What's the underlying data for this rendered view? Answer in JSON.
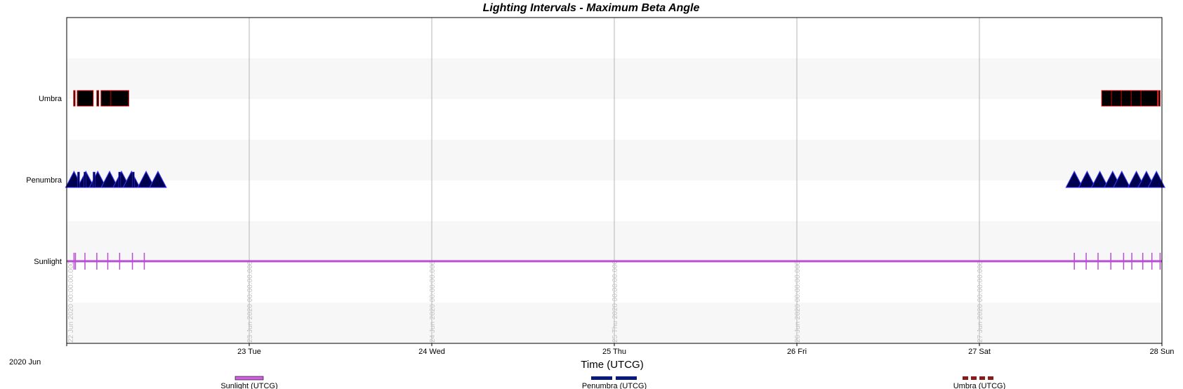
{
  "chart_data": {
    "type": "timeline",
    "title": "Lighting Intervals - Maximum Beta Angle",
    "xlabel": "Time (UTCG)",
    "x_reference_label": "2020 Jun",
    "x_range_days": [
      0,
      6
    ],
    "ticks": [
      {
        "day": 0,
        "label": ""
      },
      {
        "day": 1,
        "label": "23 Tue"
      },
      {
        "day": 2,
        "label": "24 Wed"
      },
      {
        "day": 3,
        "label": "25 Thu"
      },
      {
        "day": 4,
        "label": "26 Fri"
      },
      {
        "day": 5,
        "label": "27 Sat"
      },
      {
        "day": 6,
        "label": "28 Sun"
      }
    ],
    "gridline_labels": [
      {
        "day": 0.02,
        "label": "22 Jun 2020 00:00:00.000"
      },
      {
        "day": 1,
        "label": "23 Jun 2020 00:00:00.000"
      },
      {
        "day": 2,
        "label": "24 Jun 2020 00:00:00.000"
      },
      {
        "day": 3,
        "label": "25 Thu 2020 00:00:00.000"
      },
      {
        "day": 4,
        "label": "26 Jun 2020 00:00:00.000"
      },
      {
        "day": 5,
        "label": "27 Jun 2020 00:00:00.000"
      }
    ],
    "rows": [
      {
        "key": "umbra",
        "label": "Umbra",
        "color": "#000000",
        "edge": "#cc0000",
        "intervals": [
          [
            0.038,
            0.046
          ],
          [
            0.058,
            0.145
          ],
          [
            0.165,
            0.175
          ],
          [
            0.188,
            0.34
          ],
          [
            5.67,
            5.975
          ],
          [
            5.98,
            5.99
          ]
        ]
      },
      {
        "key": "penumbra",
        "label": "Penumbra",
        "color": "#000050",
        "edge": "#3a3aff",
        "triangles": [
          0.04,
          0.105,
          0.17,
          0.235,
          0.3,
          0.355,
          0.435,
          0.5
        ],
        "bars": [
          0.065,
          0.1,
          0.15,
          0.29,
          0.365
        ],
        "triangles2": [
          5.52,
          5.59,
          5.66,
          5.73,
          5.78,
          5.86,
          5.915,
          5.97
        ]
      },
      {
        "key": "sunlight",
        "label": "Sunlight",
        "color": "#b84fd1",
        "span": [
          0,
          6
        ],
        "markers": [
          0.04,
          0.048,
          0.1,
          0.165,
          0.225,
          0.29,
          0.36,
          0.425,
          5.52,
          5.585,
          5.65,
          5.72,
          5.79,
          5.835,
          5.895,
          5.945,
          5.99
        ]
      }
    ],
    "legend": [
      {
        "label": "Sunlight (UTCG)",
        "color": "#d060e0",
        "style": "solid"
      },
      {
        "label": "Penumbra (UTCG)",
        "color": "#0a1a7a",
        "style": "dashed-long"
      },
      {
        "label": "Umbra (UTCG)",
        "color": "#8b1a1a",
        "style": "dashed-short"
      }
    ]
  }
}
